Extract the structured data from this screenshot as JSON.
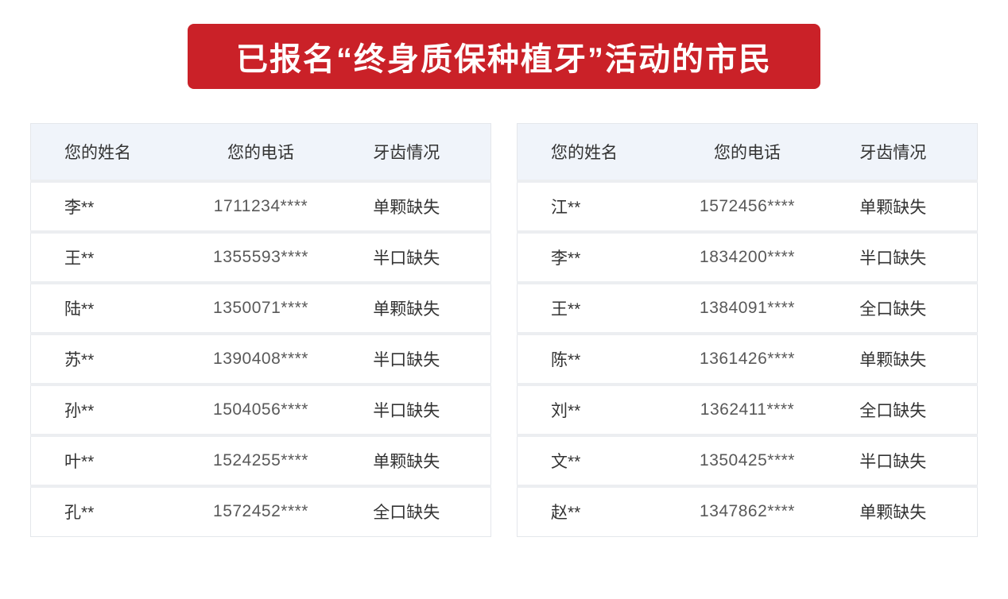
{
  "banner": {
    "title": "已报名“终身质保种植牙”活动的市民",
    "background": "#ca2128",
    "text_color": "#ffffff"
  },
  "tables": [
    {
      "headers": [
        "您的姓名",
        "您的电话",
        "牙齿情况"
      ],
      "rows": [
        [
          "李**",
          "1711234****",
          "单颗缺失"
        ],
        [
          "王**",
          "1355593****",
          "半口缺失"
        ],
        [
          "陆**",
          "1350071****",
          "单颗缺失"
        ],
        [
          "苏**",
          "1390408****",
          "半口缺失"
        ],
        [
          "孙**",
          "1504056****",
          "半口缺失"
        ],
        [
          "叶**",
          "1524255****",
          "单颗缺失"
        ],
        [
          "孔**",
          "1572452****",
          "全口缺失"
        ]
      ]
    },
    {
      "headers": [
        "您的姓名",
        "您的电话",
        "牙齿情况"
      ],
      "rows": [
        [
          "江**",
          "1572456****",
          "单颗缺失"
        ],
        [
          "李**",
          "1834200****",
          "半口缺失"
        ],
        [
          "王**",
          "1384091****",
          "全口缺失"
        ],
        [
          "陈**",
          "1361426****",
          "单颗缺失"
        ],
        [
          "刘**",
          "1362411****",
          "全口缺失"
        ],
        [
          "文**",
          "1350425****",
          "半口缺失"
        ],
        [
          "赵**",
          "1347862****",
          "单颗缺失"
        ]
      ]
    }
  ],
  "colors": {
    "banner_red": "#ca2128",
    "header_bg": "#f0f4fa",
    "row_separator": "#eceef1",
    "table_border": "#e4e7eb",
    "cell_text": "#333333",
    "phone_text": "#595959"
  }
}
